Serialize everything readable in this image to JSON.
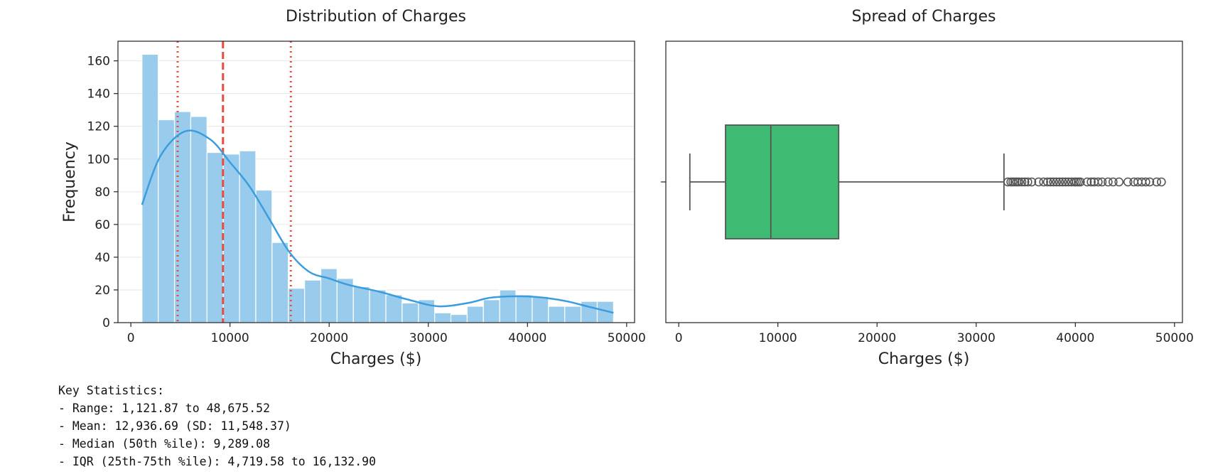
{
  "chart_data": [
    {
      "type": "bar",
      "subtype": "histogram-with-kde",
      "title": "Distribution of Charges",
      "xlabel": "Charges ($)",
      "ylabel": "Frequency",
      "xlim": [
        -1300,
        50800
      ],
      "ylim": [
        0,
        172
      ],
      "x_ticks": [
        0,
        10000,
        20000,
        30000,
        40000,
        50000
      ],
      "y_ticks": [
        0,
        20,
        40,
        60,
        80,
        100,
        120,
        140,
        160
      ],
      "grid": "horizontal",
      "bin_range": [
        1121.87,
        48675.52
      ],
      "counts": [
        164,
        124,
        129,
        126,
        104,
        103,
        105,
        81,
        49,
        21,
        26,
        33,
        27,
        22,
        20,
        17,
        12,
        14,
        6,
        5,
        10,
        14,
        20,
        17,
        16,
        10,
        10,
        13,
        13
      ],
      "bar_color": "#99ccec",
      "kde": {
        "color": "#3b9ddd",
        "x": [
          1121.87,
          3000,
          5500,
          8000,
          10000,
          12000,
          14000,
          16000,
          18000,
          20000,
          22000,
          25000,
          28000,
          31000,
          34000,
          36000,
          38000,
          40000,
          42000,
          44000,
          46000,
          48675.52
        ],
        "y": [
          72,
          102,
          117,
          112,
          98,
          83,
          63,
          43,
          31,
          27,
          23,
          19,
          14,
          10,
          12,
          15,
          16,
          16,
          15,
          13,
          10,
          6
        ]
      },
      "reference_lines": [
        {
          "value": 4719.58,
          "style": "dotted",
          "color": "#e74c3c"
        },
        {
          "value": 9289.08,
          "style": "dashed",
          "color": "#e74c3c"
        },
        {
          "value": 16132.9,
          "style": "dotted",
          "color": "#e74c3c"
        }
      ]
    },
    {
      "type": "boxplot",
      "title": "Spread of Charges",
      "xlabel": "Charges ($)",
      "xlim": [
        -1300,
        50800
      ],
      "x_ticks": [
        0,
        10000,
        20000,
        30000,
        40000,
        50000
      ],
      "box_color": "#3fba72",
      "whisker_low": 1121.87,
      "q1": 4719.58,
      "median": 9289.08,
      "q3": 16132.9,
      "whisker_high": 32800,
      "outliers": [
        33200,
        33500,
        33700,
        33900,
        34100,
        34300,
        34600,
        34900,
        35200,
        35600,
        36300,
        36800,
        37200,
        37500,
        37800,
        38100,
        38400,
        38700,
        39000,
        39300,
        39600,
        39900,
        40100,
        40300,
        40500,
        41200,
        41600,
        41900,
        42300,
        42700,
        43300,
        43800,
        44400,
        45300,
        45900,
        46300,
        46700,
        47100,
        47500,
        48200,
        48675.52
      ]
    }
  ],
  "stats": {
    "title": "Key Statistics:",
    "lines": [
      "- Range: 1,121.87 to 48,675.52",
      "- Mean: 12,936.69 (SD: 11,548.37)",
      "- Median (50th %ile): 9,289.08",
      "- IQR (25th-75th %ile): 4,719.58 to 16,132.90"
    ]
  }
}
